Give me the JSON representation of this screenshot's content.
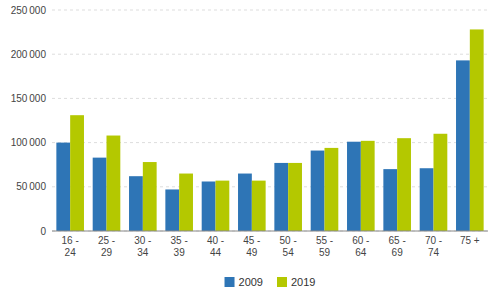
{
  "chart_data": {
    "type": "bar",
    "categories": [
      "16 -\n24",
      "25 -\n29",
      "30 -\n34",
      "35 -\n39",
      "40 -\n44",
      "45 -\n49",
      "50 -\n54",
      "55 -\n59",
      "60 -\n64",
      "65 -\n69",
      "70 -\n74",
      "75 +"
    ],
    "series": [
      {
        "name": "2009",
        "color": "#2e75b6",
        "values": [
          100000,
          83000,
          62000,
          47000,
          56000,
          65000,
          77000,
          91000,
          101000,
          70000,
          71000,
          193000
        ]
      },
      {
        "name": "2019",
        "color": "#b4c800",
        "values": [
          131000,
          108000,
          78000,
          65000,
          57000,
          57000,
          77000,
          94000,
          102000,
          105000,
          110000,
          228000
        ]
      }
    ],
    "ylim": [
      0,
      250000
    ],
    "yticks": [
      0,
      {
        "value": 50000,
        "label": "50 000"
      },
      {
        "value": 100000,
        "label": "100 000"
      },
      {
        "value": 150000,
        "label": "150 000"
      },
      {
        "value": 200000,
        "label": "200 000"
      },
      {
        "value": 250000,
        "label": "250 000"
      }
    ],
    "grid": true,
    "legend": "bottom"
  }
}
